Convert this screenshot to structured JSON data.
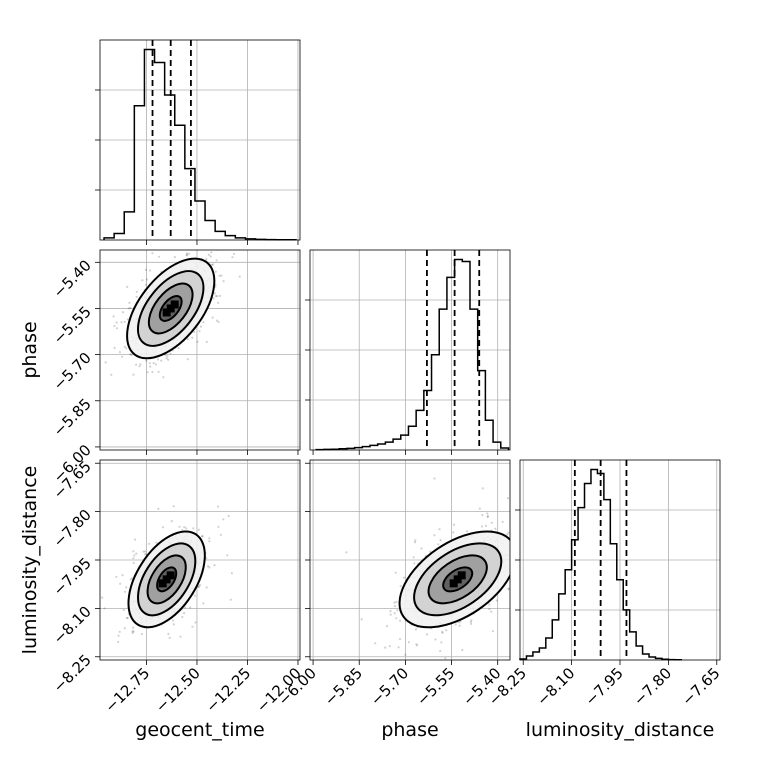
{
  "chart_data": {
    "type": "corner",
    "parameters": [
      "geocent_time",
      "phase",
      "luminosity_distance"
    ],
    "axis_ranges": {
      "geocent_time": [
        -12.98,
        -11.99
      ],
      "phase": [
        -6.01,
        -5.36
      ],
      "luminosity_distance": [
        -8.26,
        -7.64
      ]
    },
    "ticks": {
      "geocent_time": {
        "values": [
          -12.75,
          -12.5,
          -12.25,
          -12.0
        ],
        "labels": [
          "−12.75",
          "−12.50",
          "−12.25",
          "−12.00"
        ]
      },
      "phase": {
        "values": [
          -6.0,
          -5.85,
          -5.7,
          -5.55,
          -5.4
        ],
        "labels": [
          "−6.00",
          "−5.85",
          "−5.70",
          "−5.55",
          "−5.40"
        ]
      },
      "luminosity_distance": {
        "values": [
          -8.25,
          -8.1,
          -7.95,
          -7.8,
          -7.65
        ],
        "labels": [
          "−8.25",
          "−8.10",
          "−7.95",
          "−7.80",
          "−7.65"
        ]
      }
    },
    "histograms": {
      "geocent_time": {
        "edges": [
          -12.96,
          -12.91,
          -12.86,
          -12.81,
          -12.76,
          -12.71,
          -12.66,
          -12.61,
          -12.56,
          -12.51,
          -12.46,
          -12.41,
          -12.36,
          -12.31,
          -12.26,
          -12.21,
          -12.16,
          -12.11,
          -12.06,
          -12.01
        ],
        "counts": [
          0.01,
          0.03,
          0.13,
          0.62,
          0.88,
          0.82,
          0.67,
          0.53,
          0.33,
          0.18,
          0.09,
          0.04,
          0.02,
          0.01,
          0.005,
          0.003,
          0.002,
          0.001,
          0.001
        ],
        "quantiles": [
          -12.72,
          -12.63,
          -12.53
        ]
      },
      "phase": {
        "edges": [
          -5.99,
          -5.965,
          -5.94,
          -5.915,
          -5.89,
          -5.865,
          -5.84,
          -5.815,
          -5.79,
          -5.765,
          -5.74,
          -5.715,
          -5.69,
          -5.665,
          -5.64,
          -5.615,
          -5.59,
          -5.565,
          -5.54,
          -5.515,
          -5.49,
          -5.465,
          -5.44,
          -5.415,
          -5.39,
          -5.365
        ],
        "counts": [
          0.002,
          0.003,
          0.004,
          0.006,
          0.008,
          0.012,
          0.017,
          0.023,
          0.03,
          0.04,
          0.055,
          0.075,
          0.12,
          0.2,
          0.3,
          0.48,
          0.71,
          0.87,
          0.96,
          0.95,
          0.71,
          0.4,
          0.15,
          0.04,
          0.01
        ],
        "quantiles": [
          -5.63,
          -5.54,
          -5.46
        ]
      },
      "luminosity_distance": {
        "edges": [
          -8.26,
          -8.24,
          -8.22,
          -8.2,
          -8.18,
          -8.16,
          -8.14,
          -8.12,
          -8.1,
          -8.08,
          -8.06,
          -8.04,
          -8.02,
          -8.0,
          -7.98,
          -7.96,
          -7.94,
          -7.92,
          -7.9,
          -7.88,
          -7.86,
          -7.84,
          -7.82,
          -7.8,
          -7.78,
          -7.76
        ],
        "counts": [
          0.005,
          0.02,
          0.04,
          0.06,
          0.11,
          0.2,
          0.33,
          0.45,
          0.6,
          0.76,
          0.88,
          0.95,
          0.93,
          0.8,
          0.58,
          0.4,
          0.25,
          0.14,
          0.07,
          0.03,
          0.015,
          0.008,
          0.004,
          0.002,
          0.001
        ],
        "quantiles": [
          -8.09,
          -8.01,
          -7.93
        ]
      }
    },
    "scatter_panels": [
      {
        "x": "geocent_time",
        "y": "phase",
        "center": [
          -12.63,
          -5.55
        ],
        "sd": [
          0.08,
          0.06
        ],
        "corr": 0.55
      },
      {
        "x": "geocent_time",
        "y": "luminosity_distance",
        "center": [
          -12.65,
          -8.01
        ],
        "sd": [
          0.07,
          0.055
        ],
        "corr": 0.5
      },
      {
        "x": "phase",
        "y": "luminosity_distance",
        "center": [
          -5.53,
          -8.01
        ],
        "sd": [
          0.07,
          0.055
        ],
        "corr": 0.5
      }
    ],
    "contour_levels_sigma": [
      0.5,
      1.0,
      1.5,
      2.0
    ],
    "grid": true
  }
}
